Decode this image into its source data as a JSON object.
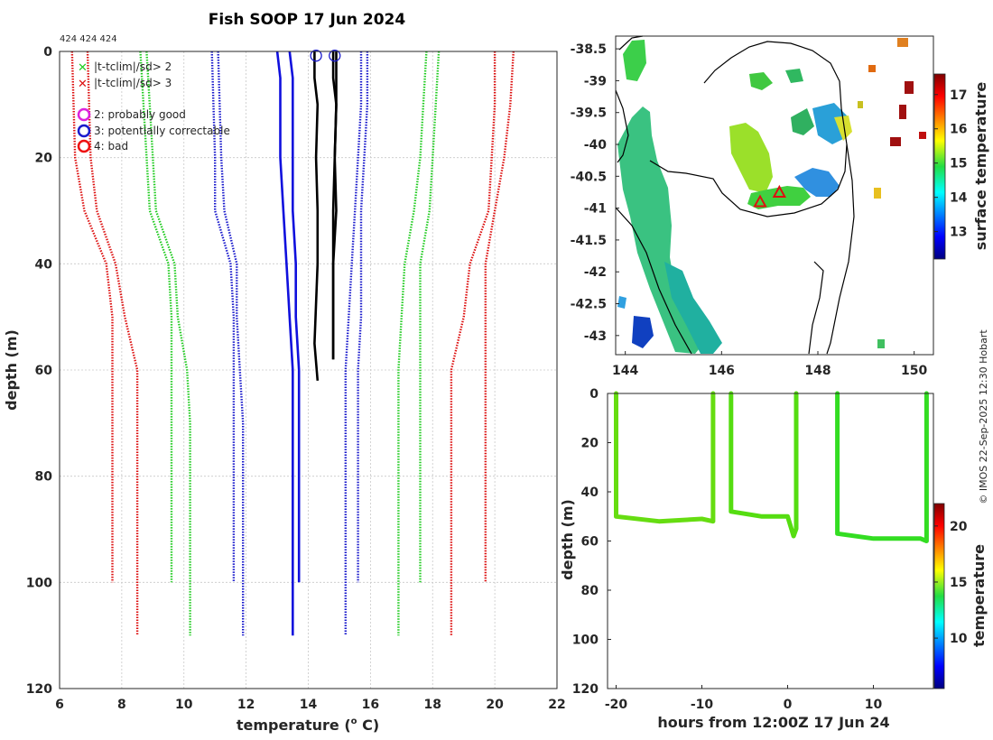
{
  "page": {
    "title": "Fish SOOP 17 Jun 2024",
    "profile_ids": "424 424 424",
    "credit": "© IMOS 22-Sep-2025 12:30 Hobart"
  },
  "legend": {
    "items": [
      {
        "label": "|t-tclim|/sd> 2",
        "color": "#22cc22",
        "marker": "x"
      },
      {
        "label": "|t-tclim|/sd> 3",
        "color": "#dd1111",
        "marker": "x"
      },
      {
        "label": "2: probably good",
        "color": "#dd22dd",
        "marker": "o"
      },
      {
        "label": "3: potentially correctable",
        "color": "#1a1acc",
        "marker": "o"
      },
      {
        "label": "4: bad",
        "color": "#ee1111",
        "marker": "o"
      }
    ]
  },
  "chart_data": [
    {
      "id": "profile",
      "type": "line",
      "title": "Fish SOOP 17 Jun 2024",
      "xlabel": "temperature (",
      "xlabel_unit": "o",
      "xlabel_tail": " C)",
      "ylabel": "depth (m)",
      "xlim": [
        6,
        22
      ],
      "ylim": [
        120,
        0
      ],
      "xticks": [
        "6",
        "8",
        "10",
        "12",
        "14",
        "16",
        "18",
        "20",
        "22"
      ],
      "yticks": [
        "0",
        "20",
        "40",
        "60",
        "80",
        "100",
        "120"
      ],
      "grid": true,
      "series": [
        {
          "name": "clim 3sd low (profile A)",
          "color": "#dd1111",
          "style": "dotted",
          "x": [
            6.4,
            6.5,
            6.8,
            7.5,
            7.7,
            7.7,
            7.7
          ],
          "y": [
            0,
            20,
            30,
            40,
            50,
            60,
            100
          ]
        },
        {
          "name": "clim 3sd low (profile B)",
          "color": "#dd1111",
          "style": "dotted",
          "x": [
            6.9,
            7.0,
            7.2,
            7.8,
            8.1,
            8.5,
            8.5,
            8.5
          ],
          "y": [
            0,
            20,
            30,
            40,
            50,
            60,
            70,
            110
          ]
        },
        {
          "name": "clim 2sd low (profile A)",
          "color": "#22cc22",
          "style": "dotted",
          "x": [
            8.6,
            8.8,
            8.9,
            9.5,
            9.6,
            9.6,
            9.6
          ],
          "y": [
            0,
            20,
            30,
            40,
            50,
            60,
            100
          ]
        },
        {
          "name": "clim 2sd low (profile B)",
          "color": "#22cc22",
          "style": "dotted",
          "x": [
            8.8,
            9.0,
            9.1,
            9.7,
            9.8,
            10.1,
            10.2,
            10.2
          ],
          "y": [
            0,
            20,
            30,
            40,
            50,
            60,
            70,
            110
          ]
        },
        {
          "name": "clim mean low (profile A)",
          "color": "#1a1acc",
          "style": "dotted",
          "x": [
            10.9,
            11.0,
            11.0,
            11.5,
            11.6,
            11.6,
            11.6
          ],
          "y": [
            0,
            20,
            30,
            40,
            50,
            60,
            100
          ]
        },
        {
          "name": "clim mean low (profile B)",
          "color": "#1a1acc",
          "style": "dotted",
          "x": [
            11.1,
            11.2,
            11.3,
            11.7,
            11.7,
            11.8,
            11.9,
            11.9
          ],
          "y": [
            0,
            20,
            30,
            40,
            50,
            60,
            70,
            110
          ]
        },
        {
          "name": "clim mean (profile A)",
          "color": "#1010dd",
          "style": "solid",
          "x": [
            13.0,
            13.1,
            13.1,
            13.2,
            13.3,
            13.4,
            13.5,
            13.5
          ],
          "y": [
            0,
            5,
            20,
            30,
            40,
            50,
            60,
            110
          ]
        },
        {
          "name": "clim mean (profile B)",
          "color": "#1010dd",
          "style": "solid",
          "x": [
            13.4,
            13.5,
            13.5,
            13.5,
            13.6,
            13.6,
            13.7,
            13.7
          ],
          "y": [
            0,
            5,
            20,
            30,
            40,
            50,
            60,
            100
          ]
        },
        {
          "name": "clim mean high (profile A)",
          "color": "#1a1acc",
          "style": "dotted",
          "x": [
            15.7,
            15.7,
            15.6,
            15.5,
            15.4,
            15.3,
            15.2,
            15.2
          ],
          "y": [
            0,
            10,
            20,
            30,
            40,
            50,
            60,
            110
          ]
        },
        {
          "name": "clim mean high (profile B)",
          "color": "#1a1acc",
          "style": "dotted",
          "x": [
            15.9,
            15.9,
            15.8,
            15.7,
            15.7,
            15.7,
            15.6,
            15.6
          ],
          "y": [
            0,
            10,
            20,
            30,
            40,
            50,
            60,
            100
          ]
        },
        {
          "name": "clim 2sd high (profile A)",
          "color": "#22cc22",
          "style": "dotted",
          "x": [
            17.8,
            17.7,
            17.6,
            17.4,
            17.1,
            17.0,
            16.9,
            16.9
          ],
          "y": [
            0,
            10,
            20,
            30,
            40,
            50,
            60,
            110
          ]
        },
        {
          "name": "clim 2sd high (profile B)",
          "color": "#22cc22",
          "style": "dotted",
          "x": [
            18.2,
            18.1,
            18.0,
            17.9,
            17.6,
            17.6,
            17.6,
            17.6
          ],
          "y": [
            0,
            10,
            20,
            30,
            40,
            50,
            60,
            100
          ]
        },
        {
          "name": "clim 3sd high (profile A)",
          "color": "#dd1111",
          "style": "dotted",
          "x": [
            20.0,
            20.0,
            19.9,
            19.8,
            19.2,
            19.0,
            18.6,
            18.6
          ],
          "y": [
            0,
            10,
            20,
            30,
            40,
            50,
            60,
            110
          ]
        },
        {
          "name": "clim 3sd high (profile B)",
          "color": "#dd1111",
          "style": "dotted",
          "x": [
            20.6,
            20.5,
            20.3,
            20.0,
            19.7,
            19.7,
            19.7,
            19.7
          ],
          "y": [
            0,
            10,
            20,
            30,
            40,
            50,
            60,
            100
          ]
        },
        {
          "name": "observed profile 1",
          "color": "#000000",
          "style": "solid",
          "x": [
            14.2,
            14.2,
            14.3,
            14.25,
            14.3,
            14.3,
            14.2,
            14.3
          ],
          "y": [
            0,
            5,
            10,
            20,
            30,
            40,
            55,
            62
          ]
        },
        {
          "name": "observed profile 2",
          "color": "#000000",
          "style": "solid",
          "x": [
            14.8,
            14.8,
            14.9,
            14.85,
            14.8,
            14.8,
            14.8
          ],
          "y": [
            0,
            5,
            10,
            20,
            30,
            40,
            58
          ]
        },
        {
          "name": "observed profile 3",
          "color": "#000000",
          "style": "solid",
          "x": [
            14.9,
            14.9,
            14.85,
            14.9,
            14.8,
            14.8
          ],
          "y": [
            0,
            10,
            20,
            30,
            40,
            58
          ]
        }
      ],
      "markers": [
        {
          "name": "flag 3 surface 1",
          "x": 14.25,
          "y": 0.8,
          "color": "#1a1acc"
        },
        {
          "name": "flag 3 surface 2",
          "x": 14.85,
          "y": 0.8,
          "color": "#1a1acc"
        }
      ]
    },
    {
      "id": "map",
      "type": "heatmap",
      "xlim": [
        143.8,
        150.4
      ],
      "ylim": [
        -43.3,
        -38.3
      ],
      "xticks": [
        "144",
        "146",
        "148",
        "150"
      ],
      "yticks": [
        "-38.5",
        "-39",
        "-39.5",
        "-40",
        "-40.5",
        "-41",
        "-41.5",
        "-42",
        "-42.5",
        "-43"
      ],
      "colorbar_label": "surface temperature",
      "colorbar_ticks": [
        "13",
        "14",
        "15",
        "16",
        "17"
      ],
      "colorbar_range": [
        12.2,
        17.6
      ],
      "positions": [
        {
          "lon": 146.8,
          "lat": -40.9,
          "marker": "triangle",
          "color": "#dd1111"
        },
        {
          "lon": 147.2,
          "lat": -40.75,
          "marker": "triangle",
          "color": "#dd1111"
        }
      ]
    },
    {
      "id": "timeseries",
      "type": "scatter",
      "xlabel": "hours from 12:00Z 17 Jun 24",
      "ylabel": "depth (m)",
      "xlim": [
        -21,
        17
      ],
      "ylim": [
        120,
        0
      ],
      "xticks": [
        "-20",
        "-10",
        "0",
        "10"
      ],
      "yticks": [
        "0",
        "20",
        "40",
        "60",
        "80",
        "100",
        "120"
      ],
      "colorbar_label": "temperature",
      "colorbar_ticks": [
        "10",
        "15",
        "20"
      ],
      "colorbar_range": [
        5.5,
        22
      ],
      "segments": [
        {
          "t": [
            -20.0,
            -20.0,
            -15.0,
            -10.0,
            -8.7,
            -8.7
          ],
          "d": [
            0,
            50,
            52,
            51,
            52,
            0
          ],
          "color": "#66dd11"
        },
        {
          "t": [
            -6.6,
            -6.6,
            -3.0,
            0.0,
            0.7,
            1.0,
            1.0
          ],
          "d": [
            0,
            48,
            50,
            50,
            58,
            55,
            0
          ],
          "color": "#55dd11"
        },
        {
          "t": [
            5.8,
            5.8,
            10.0,
            15.5,
            16.2,
            16.2
          ],
          "d": [
            0,
            57,
            59,
            59,
            60,
            0
          ],
          "color": "#33dd22"
        }
      ]
    }
  ]
}
